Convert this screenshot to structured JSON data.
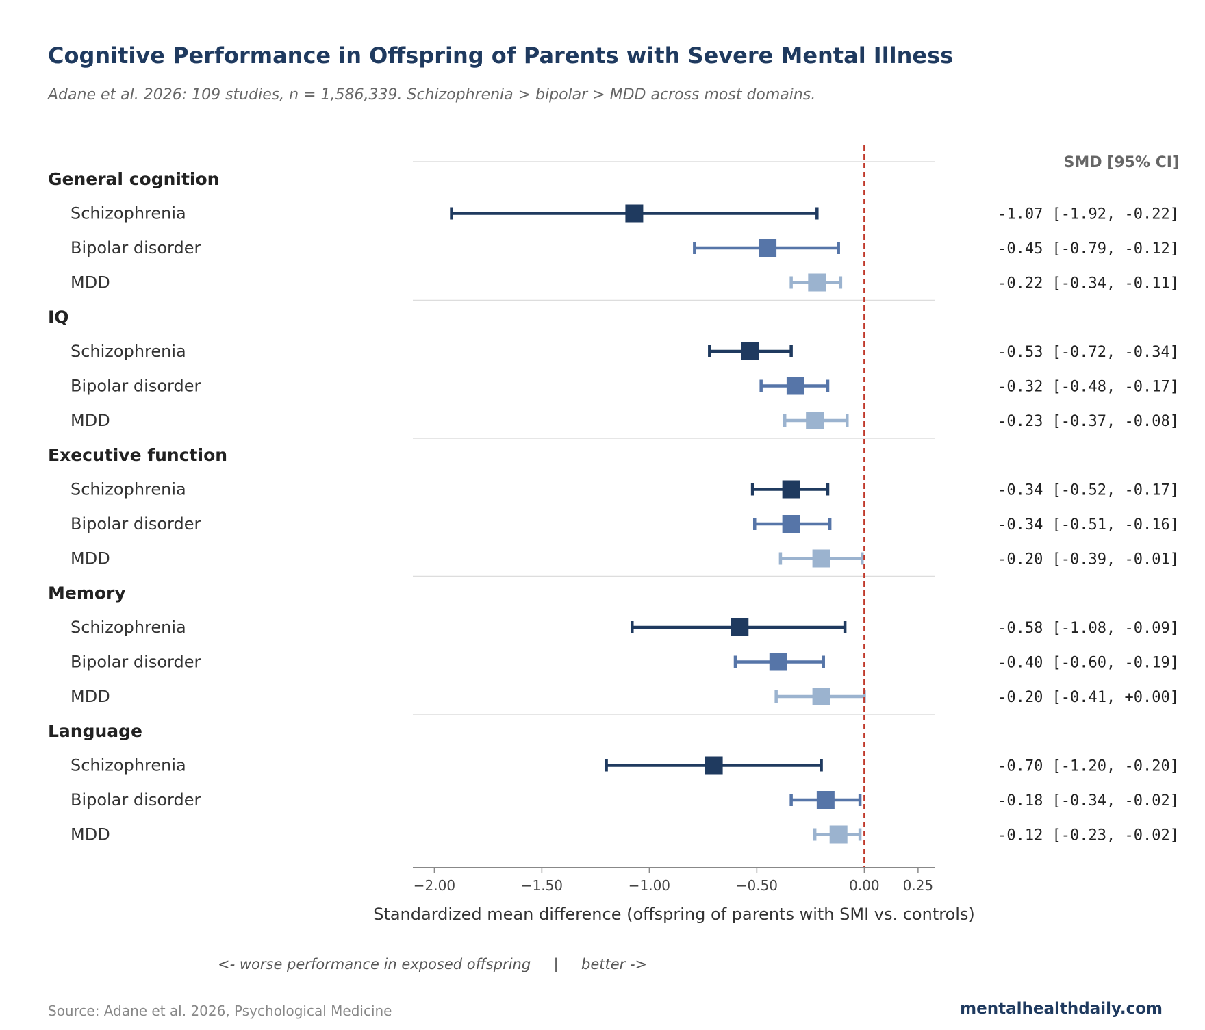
{
  "title": "Cognitive Performance in Offspring of Parents with Severe Mental Illness",
  "subtitle": "Adane et al. 2026: 109 studies, n = 1,586,339. Schizophrenia > bipolar > MDD across most domains.",
  "source": "Source: Adane et al. 2026, Psychological Medicine",
  "brand": "mentalhealthdaily.com",
  "colors": {
    "Schizophrenia": "#1f3a5f",
    "Bipolar disorder": "#5675a8",
    "MDD": "#9bb3cf",
    "reference_line": "#c0392b"
  },
  "chart_data": {
    "type": "forest",
    "xlabel": "Standardized mean difference (offspring of parents with SMI vs. controls)",
    "direction_note": "<- worse performance in exposed offspring     |     better ->",
    "ci_header": "SMD [95% CI]",
    "xlim": [
      -2.1,
      0.33
    ],
    "xticks": [
      -2.0,
      -1.5,
      -1.0,
      -0.5,
      0.0,
      0.25
    ],
    "xtick_labels": [
      "−2.00",
      "−1.50",
      "−1.00",
      "−0.50",
      "0.00",
      "0.25"
    ],
    "reference_x": 0.0,
    "groups": [
      {
        "name": "General cognition",
        "rows": [
          {
            "label": "Schizophrenia",
            "smd": -1.07,
            "lo": -1.92,
            "hi": -0.22,
            "ci_text": "-1.07 [-1.92, -0.22]"
          },
          {
            "label": "Bipolar disorder",
            "smd": -0.45,
            "lo": -0.79,
            "hi": -0.12,
            "ci_text": "-0.45 [-0.79, -0.12]"
          },
          {
            "label": "MDD",
            "smd": -0.22,
            "lo": -0.34,
            "hi": -0.11,
            "ci_text": "-0.22 [-0.34, -0.11]"
          }
        ]
      },
      {
        "name": "IQ",
        "rows": [
          {
            "label": "Schizophrenia",
            "smd": -0.53,
            "lo": -0.72,
            "hi": -0.34,
            "ci_text": "-0.53 [-0.72, -0.34]"
          },
          {
            "label": "Bipolar disorder",
            "smd": -0.32,
            "lo": -0.48,
            "hi": -0.17,
            "ci_text": "-0.32 [-0.48, -0.17]"
          },
          {
            "label": "MDD",
            "smd": -0.23,
            "lo": -0.37,
            "hi": -0.08,
            "ci_text": "-0.23 [-0.37, -0.08]"
          }
        ]
      },
      {
        "name": "Executive function",
        "rows": [
          {
            "label": "Schizophrenia",
            "smd": -0.34,
            "lo": -0.52,
            "hi": -0.17,
            "ci_text": "-0.34 [-0.52, -0.17]"
          },
          {
            "label": "Bipolar disorder",
            "smd": -0.34,
            "lo": -0.51,
            "hi": -0.16,
            "ci_text": "-0.34 [-0.51, -0.16]"
          },
          {
            "label": "MDD",
            "smd": -0.2,
            "lo": -0.39,
            "hi": -0.01,
            "ci_text": "-0.20 [-0.39, -0.01]"
          }
        ]
      },
      {
        "name": "Memory",
        "rows": [
          {
            "label": "Schizophrenia",
            "smd": -0.58,
            "lo": -1.08,
            "hi": -0.09,
            "ci_text": "-0.58 [-1.08, -0.09]"
          },
          {
            "label": "Bipolar disorder",
            "smd": -0.4,
            "lo": -0.6,
            "hi": -0.19,
            "ci_text": "-0.40 [-0.60, -0.19]"
          },
          {
            "label": "MDD",
            "smd": -0.2,
            "lo": -0.41,
            "hi": 0.0,
            "ci_text": "-0.20 [-0.41, +0.00]"
          }
        ]
      },
      {
        "name": "Language",
        "rows": [
          {
            "label": "Schizophrenia",
            "smd": -0.7,
            "lo": -1.2,
            "hi": -0.2,
            "ci_text": "-0.70 [-1.20, -0.20]"
          },
          {
            "label": "Bipolar disorder",
            "smd": -0.18,
            "lo": -0.34,
            "hi": -0.02,
            "ci_text": "-0.18 [-0.34, -0.02]"
          },
          {
            "label": "MDD",
            "smd": -0.12,
            "lo": -0.23,
            "hi": -0.02,
            "ci_text": "-0.12 [-0.23, -0.02]"
          }
        ]
      }
    ]
  }
}
